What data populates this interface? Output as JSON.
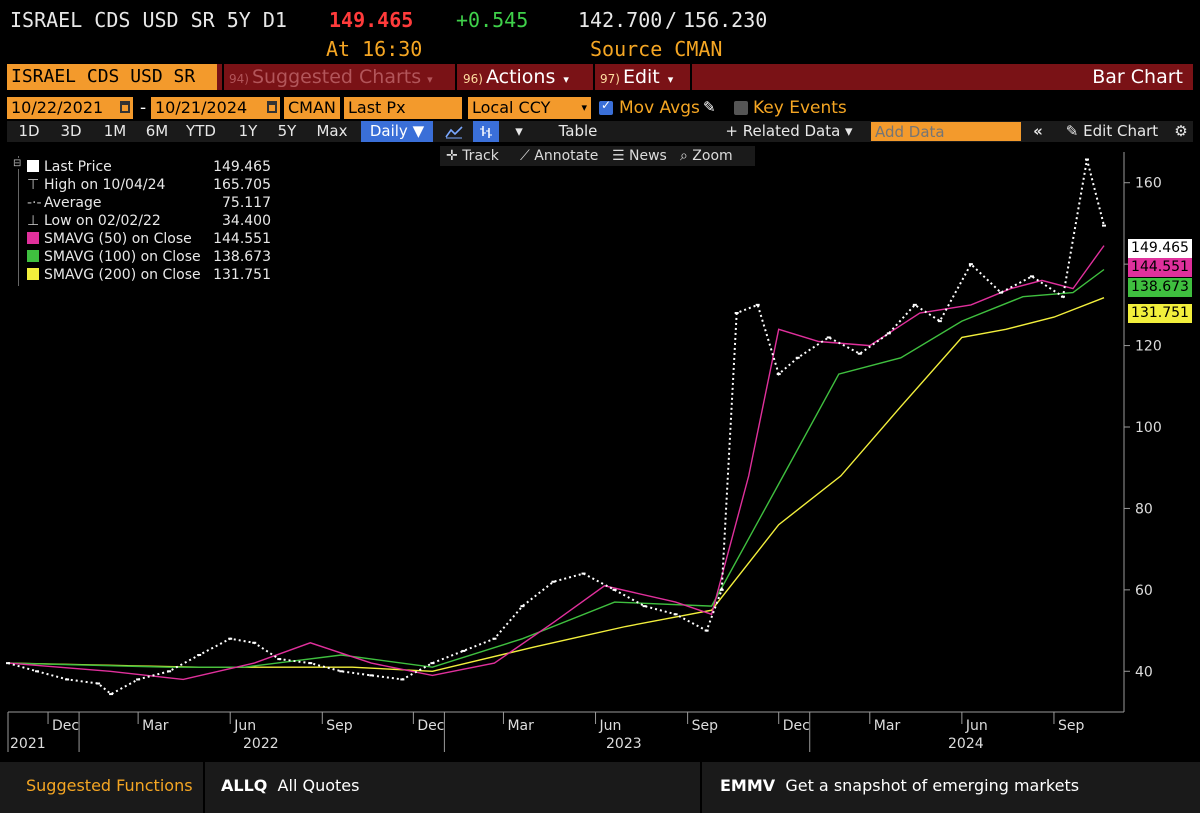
{
  "header": {
    "security": "ISRAEL CDS USD SR 5Y D1",
    "last_price": "149.465",
    "change": "+0.545",
    "bid_ask_low": "142.700",
    "bid_ask_sep": "/",
    "bid_ask_high": "156.230",
    "time_label": "At 16:30",
    "source_label": "Source CMAN"
  },
  "function_bar": {
    "ticker": "ISRAEL CDS USD SR",
    "suggested_num": "94)",
    "suggested": "Suggested Charts",
    "actions_num": "96)",
    "actions": "Actions",
    "edit_num": "97)",
    "edit": "Edit",
    "chart_type": "Bar Chart"
  },
  "params": {
    "start_date": "10/22/2021",
    "dash": "-",
    "end_date": "10/21/2024",
    "source": "CMAN",
    "field": "Last Px",
    "currency": "Local CCY",
    "mov_avgs": "Mov Avgs",
    "key_events": "Key Events"
  },
  "toolbar": {
    "periods": [
      "1D",
      "3D",
      "1M",
      "6M",
      "YTD",
      "1Y",
      "5Y",
      "Max"
    ],
    "frequency": "Daily ▼",
    "table": "Table",
    "related_data": "+ Related Data ▾",
    "add_data_placeholder": "Add Data",
    "edit_chart": "Edit Chart"
  },
  "subtools": {
    "track": "Track",
    "annotate": "Annotate",
    "news": "News",
    "zoom": "Zoom"
  },
  "legend": [
    {
      "label": "Last Price",
      "value": "149.465",
      "color": "#ffffff",
      "kind": "swatch"
    },
    {
      "label": "High on 10/04/24",
      "value": "165.705",
      "kind": "high"
    },
    {
      "label": "Average",
      "value": "75.117",
      "kind": "avg"
    },
    {
      "label": "Low on 02/02/22",
      "value": "34.400",
      "kind": "low"
    },
    {
      "label": "SMAVG (50)  on Close",
      "value": "144.551",
      "color": "#e0309c",
      "kind": "swatch"
    },
    {
      "label": "SMAVG (100)  on Close",
      "value": "138.673",
      "color": "#3fbf3f",
      "kind": "swatch"
    },
    {
      "label": "SMAVG (200)  on Close",
      "value": "131.751",
      "color": "#f2ef3c",
      "kind": "swatch"
    }
  ],
  "price_tags": [
    {
      "value": "149.465",
      "color": "#ffffff"
    },
    {
      "value": "144.551",
      "color": "#e0309c"
    },
    {
      "value": "138.673",
      "color": "#3fbf3f"
    },
    {
      "value": "131.751",
      "color": "#f2ef3c"
    }
  ],
  "footer": {
    "suggested_functions": "Suggested Functions",
    "func1_code": "ALLQ",
    "func1_desc": "All Quotes",
    "func2_code": "EMMV",
    "func2_desc": "Get a snapshot of emerging markets"
  },
  "chart_data": {
    "type": "line",
    "ylim": [
      30,
      170
    ],
    "y_ticks": [
      40,
      60,
      80,
      100,
      120,
      140,
      160
    ],
    "x_ticks": [
      "Dec",
      "Mar",
      "Jun",
      "Sep",
      "Dec",
      "Mar",
      "Jun",
      "Sep",
      "Dec",
      "Mar",
      "Jun",
      "Sep"
    ],
    "year_labels": [
      "2021",
      "2022",
      "2023",
      "2024"
    ],
    "x_range": [
      "2021-10-22",
      "2024-10-21"
    ],
    "colors": {
      "price": "#ffffff",
      "sma50": "#e0309c",
      "sma100": "#3fbf3f",
      "sma200": "#f2ef3c"
    },
    "series": [
      {
        "name": "Last Price",
        "x": [
          "2021-10-22",
          "2021-11-20",
          "2021-12-20",
          "2022-01-20",
          "2022-02-02",
          "2022-03-01",
          "2022-04-01",
          "2022-05-01",
          "2022-06-01",
          "2022-06-25",
          "2022-07-20",
          "2022-08-20",
          "2022-09-20",
          "2022-10-20",
          "2022-11-20",
          "2022-12-20",
          "2023-01-20",
          "2023-02-20",
          "2023-03-20",
          "2023-04-20",
          "2023-05-20",
          "2023-06-20",
          "2023-07-20",
          "2023-08-20",
          "2023-09-20",
          "2023-10-05",
          "2023-10-20",
          "2023-11-10",
          "2023-12-01",
          "2023-12-20",
          "2024-01-20",
          "2024-02-20",
          "2024-03-20",
          "2024-04-15",
          "2024-05-10",
          "2024-06-10",
          "2024-07-10",
          "2024-08-10",
          "2024-09-10",
          "2024-10-04",
          "2024-10-21"
        ],
        "values": [
          42,
          40,
          38,
          37,
          34.4,
          38,
          40,
          44,
          48,
          47,
          43,
          42,
          40,
          39,
          38,
          42,
          45,
          48,
          56,
          62,
          64,
          60,
          56,
          54,
          50,
          60,
          128,
          130,
          113,
          117,
          122,
          118,
          123,
          130,
          126,
          140,
          133,
          137,
          132,
          165.7,
          149.465
        ]
      },
      {
        "name": "SMAVG (50)",
        "x": [
          "2021-10-22",
          "2022-02-01",
          "2022-04-15",
          "2022-06-25",
          "2022-08-20",
          "2022-10-20",
          "2022-12-20",
          "2023-02-20",
          "2023-04-20",
          "2023-06-10",
          "2023-08-20",
          "2023-09-25",
          "2023-11-01",
          "2023-12-01",
          "2024-01-10",
          "2024-03-01",
          "2024-04-20",
          "2024-06-10",
          "2024-07-20",
          "2024-08-20",
          "2024-09-20",
          "2024-10-21"
        ],
        "values": [
          42,
          40,
          38,
          42,
          47,
          42,
          39,
          42,
          52,
          61,
          57,
          54,
          88,
          124,
          121,
          120,
          128,
          130,
          134,
          136,
          134,
          144.551
        ]
      },
      {
        "name": "SMAVG (100)",
        "x": [
          "2021-10-22",
          "2022-04-01",
          "2022-06-15",
          "2022-09-20",
          "2022-12-20",
          "2023-03-20",
          "2023-06-20",
          "2023-09-25",
          "2023-12-01",
          "2024-01-30",
          "2024-04-01",
          "2024-06-01",
          "2024-08-01",
          "2024-09-20",
          "2024-10-21"
        ],
        "values": [
          42,
          41,
          41,
          44,
          41,
          48,
          57,
          56,
          86,
          113,
          117,
          126,
          132,
          133,
          138.673
        ]
      },
      {
        "name": "SMAVG (200)",
        "x": [
          "2021-10-22",
          "2022-05-01",
          "2022-10-01",
          "2022-12-20",
          "2023-04-01",
          "2023-07-01",
          "2023-09-25",
          "2023-12-01",
          "2024-02-01",
          "2024-04-01",
          "2024-06-01",
          "2024-07-15",
          "2024-09-01",
          "2024-10-21"
        ],
        "values": [
          42,
          41,
          41,
          40,
          46,
          51,
          55,
          76,
          88,
          105,
          122,
          124,
          127,
          131.751
        ]
      }
    ]
  }
}
